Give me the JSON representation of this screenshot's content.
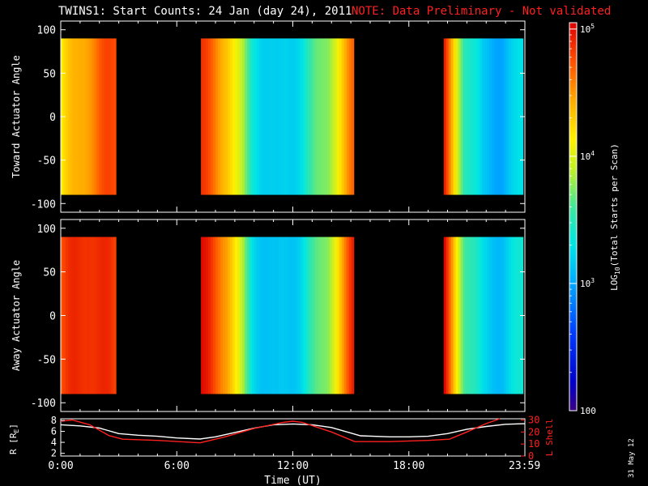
{
  "title": "TWINS1: Start Counts: 24 Jan (day  24), 2011",
  "note": "NOTE: Data Preliminary - Not validated",
  "date_stamp": "31 May 12",
  "colors": {
    "background": "#000000",
    "axis": "#ffffff",
    "note": "#ff2020",
    "lshell": "#ff2020",
    "r_line": "#ffffff"
  },
  "chart_data": [
    {
      "type": "heatmap",
      "ylabel": "Toward Actuator Angle",
      "ylim": [
        -110,
        110
      ],
      "yticks": [
        100,
        50,
        0,
        -50,
        -100
      ],
      "angle_range": [
        -90,
        90
      ],
      "x_range_hours": [
        0,
        24
      ],
      "segments": [
        {
          "start_h": 0.0,
          "end_h": 2.85,
          "log_counts": [
            4.15,
            4.35,
            4.55,
            4.7,
            4.75
          ]
        },
        {
          "start_h": 7.25,
          "end_h": 15.15,
          "log_counts": [
            4.8,
            4.4,
            3.4,
            3.1,
            3.35,
            3.8,
            4.6
          ]
        },
        {
          "start_h": 19.8,
          "end_h": 23.9,
          "log_counts": [
            4.85,
            3.6,
            3.1,
            3.05,
            3.25
          ]
        }
      ]
    },
    {
      "type": "heatmap",
      "ylabel": "Away Actuator Angle",
      "ylim": [
        -110,
        110
      ],
      "yticks": [
        100,
        50,
        0,
        -50,
        -100
      ],
      "angle_range": [
        -90,
        90
      ],
      "x_range_hours": [
        0,
        24
      ],
      "segments": [
        {
          "start_h": 0.0,
          "end_h": 2.85,
          "log_counts": [
            4.75,
            4.85,
            4.95,
            4.85,
            4.8
          ]
        },
        {
          "start_h": 7.25,
          "end_h": 15.15,
          "log_counts": [
            4.95,
            4.55,
            3.3,
            3.05,
            3.3,
            3.8,
            4.85
          ]
        },
        {
          "start_h": 19.8,
          "end_h": 23.9,
          "log_counts": [
            4.95,
            3.7,
            3.2,
            3.15,
            3.35
          ]
        }
      ]
    },
    {
      "type": "line",
      "ylabel_left": "R [R",
      "ylabel_left_sub": "E",
      "ylabel_left_end": "]",
      "ylabel_right": "L Shell",
      "xlabel": "Time (UT)",
      "xticks": [
        {
          "h": 0,
          "label": "0:00"
        },
        {
          "h": 6,
          "label": "6:00"
        },
        {
          "h": 12,
          "label": "12:00"
        },
        {
          "h": 18,
          "label": "18:00"
        },
        {
          "h": 23.983,
          "label": "23:59"
        }
      ],
      "left_yticks": [
        8,
        6,
        4,
        2
      ],
      "left_ylim": [
        1.5,
        8.3
      ],
      "right_yticks": [
        30,
        20,
        10,
        0
      ],
      "right_ylim": [
        0,
        31
      ],
      "series": [
        {
          "name": "R",
          "axis": "left",
          "x": [
            0,
            1,
            2,
            3,
            4,
            5,
            6,
            7.2,
            8,
            9,
            10,
            11,
            12,
            13,
            14,
            15.5,
            17,
            18,
            19,
            20,
            21,
            22,
            23,
            24
          ],
          "y": [
            7.2,
            7.0,
            6.6,
            5.6,
            5.3,
            5.1,
            4.8,
            4.6,
            5.0,
            5.8,
            6.6,
            7.2,
            7.35,
            7.2,
            6.7,
            5.2,
            5.0,
            5.0,
            5.1,
            5.6,
            6.4,
            6.9,
            7.3,
            7.4
          ]
        },
        {
          "name": "L Shell",
          "axis": "right",
          "x": [
            0,
            0.6,
            1.5,
            2.5,
            3.2,
            5,
            7.2,
            8.5,
            10,
            11.5,
            12,
            12.5,
            14,
            15.2,
            17,
            19,
            20.1,
            21,
            22,
            22.7
          ],
          "y": [
            29,
            30,
            26,
            17,
            14,
            13,
            11,
            16,
            23,
            28,
            29,
            28,
            20,
            12,
            12,
            13,
            14,
            20,
            27,
            31
          ]
        }
      ]
    }
  ],
  "colorbar": {
    "label_prefix": "LOG",
    "label_sub": "10",
    "label_rest": "(Total Starts per Scan)",
    "ticks": [
      {
        "log": 5,
        "base": "10",
        "exp": "5"
      },
      {
        "log": 4,
        "base": "10",
        "exp": "4"
      },
      {
        "log": 3,
        "base": "10",
        "exp": "3"
      },
      {
        "log": 2,
        "base": "100",
        "exp": ""
      }
    ],
    "range": [
      2,
      5.05
    ]
  }
}
